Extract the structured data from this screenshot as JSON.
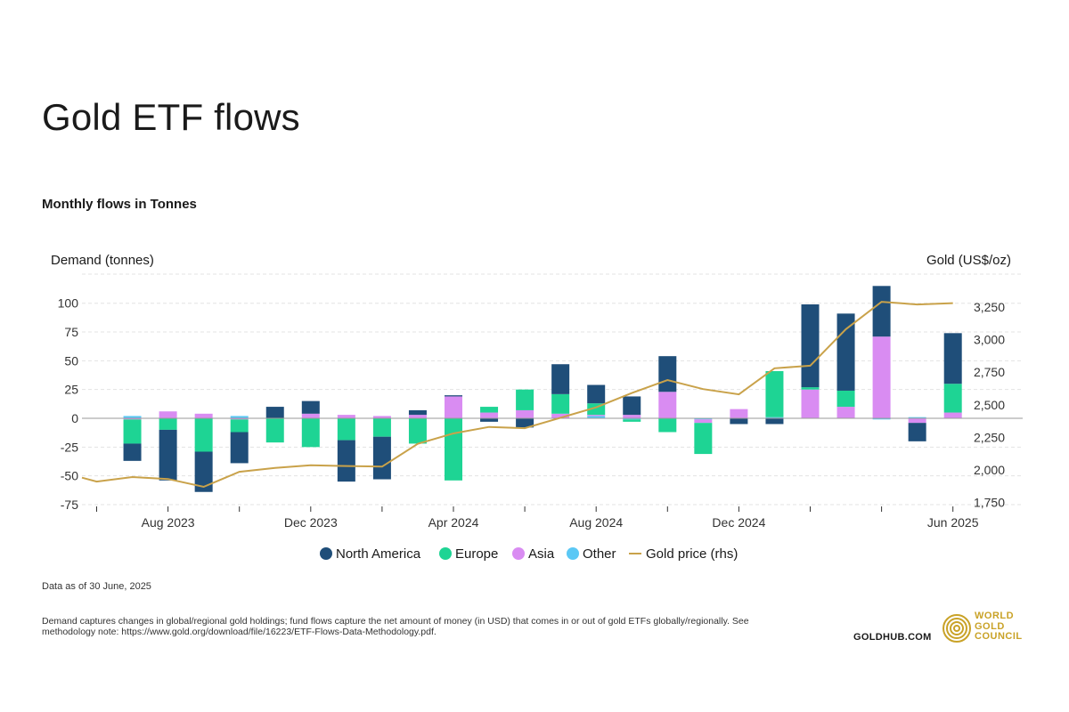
{
  "title": "Gold ETF flows",
  "subtitle": "Monthly flows in Tonnes",
  "footnote": "Data as of 30 June, 2025",
  "description": "Demand captures changes in global/regional gold holdings; fund flows capture the net amount of money (in USD) that comes in or out of gold ETFs globally/regionally. See methodology note: https://www.gold.org/download/file/16223/ETF-Flows-Data-Methodology.pdf.",
  "brand": {
    "site": "GOLDHUB.COM",
    "logo_lines": [
      "WORLD",
      "GOLD",
      "COUNCIL"
    ],
    "logo_color": "#c9a227"
  },
  "chart_data": {
    "type": "bar",
    "stacked": true,
    "title": "Gold ETF flows",
    "subtitle": "Monthly flows in Tonnes",
    "ylabel": "Demand (tonnes)",
    "y2label": "Gold (US$/oz)",
    "ylim": [
      -75,
      125
    ],
    "y2lim": [
      1750,
      3500
    ],
    "yticks": [
      -75,
      -50,
      -25,
      0,
      25,
      50,
      75,
      100
    ],
    "yticklabels": [
      "-75",
      "-50",
      "-25",
      "0",
      "25",
      "50",
      "75",
      "100"
    ],
    "y2ticks": [
      1750,
      2000,
      2250,
      2500,
      2750,
      3000,
      3250
    ],
    "y2ticklabels": [
      "1,750",
      "2,000",
      "2,250",
      "2,500",
      "2,750",
      "3,000",
      "3,250"
    ],
    "categories": [
      "Jun 2023",
      "Jul 2023",
      "Aug 2023",
      "Sep 2023",
      "Oct 2023",
      "Nov 2023",
      "Dec 2023",
      "Jan 2024",
      "Feb 2024",
      "Mar 2024",
      "Apr 2024",
      "May 2024",
      "Jun 2024",
      "Jul 2024",
      "Aug 2024",
      "Sep 2024",
      "Oct 2024",
      "Nov 2024",
      "Dec 2024",
      "Jan 2025",
      "Feb 2025",
      "Mar 2025",
      "Apr 2025",
      "May 2025",
      "Jun 2025"
    ],
    "xticklabels": [
      {
        "index": 2,
        "label": "Aug 2023"
      },
      {
        "index": 6,
        "label": "Dec 2023"
      },
      {
        "index": 10,
        "label": "Apr 2024"
      },
      {
        "index": 14,
        "label": "Aug 2024"
      },
      {
        "index": 18,
        "label": "Dec 2024"
      },
      {
        "index": 24,
        "label": "Jun 2025"
      }
    ],
    "series": [
      {
        "name": "Other",
        "color": "#5bc8f5",
        "values": [
          0,
          2,
          0,
          0,
          2,
          0,
          0,
          0,
          0,
          0,
          0,
          0,
          0,
          0,
          2,
          -1,
          0,
          -1,
          0,
          1,
          0,
          0,
          -1,
          1,
          0
        ]
      },
      {
        "name": "Asia",
        "color": "#d98cf2",
        "values": [
          0,
          -1,
          6,
          4,
          -1,
          0,
          4,
          3,
          2,
          3,
          19,
          5,
          7,
          4,
          1,
          3,
          23,
          -3,
          8,
          0,
          25,
          10,
          71,
          -4,
          5
        ]
      },
      {
        "name": "Europe",
        "color": "#1ed494",
        "values": [
          0,
          -21,
          -10,
          -29,
          -11,
          -21,
          -25,
          -19,
          -16,
          -22,
          -54,
          5,
          18,
          17,
          10,
          -2,
          -12,
          -27,
          0,
          40,
          2,
          14,
          0,
          0,
          25
        ]
      },
      {
        "name": "North America",
        "color": "#1f4e79",
        "values": [
          0,
          -15,
          -44,
          -35,
          -27,
          10,
          11,
          -36,
          -37,
          4,
          1,
          -3,
          -8,
          26,
          16,
          16,
          31,
          0,
          -5,
          -5,
          72,
          67,
          44,
          -16,
          44
        ]
      }
    ],
    "line": {
      "name": "Gold price (rhs)",
      "color": "#c9a24a",
      "axis": "right",
      "values": [
        1910,
        1945,
        1930,
        1870,
        1985,
        2015,
        2035,
        2030,
        2025,
        2200,
        2280,
        2330,
        2320,
        2400,
        2480,
        2590,
        2690,
        2620,
        2580,
        2780,
        2800,
        3080,
        3290,
        3270,
        3280
      ]
    },
    "legend": [
      "North America",
      "Europe",
      "Asia",
      "Other",
      "Gold price (rhs)"
    ],
    "legend_position": "bottom-center"
  }
}
